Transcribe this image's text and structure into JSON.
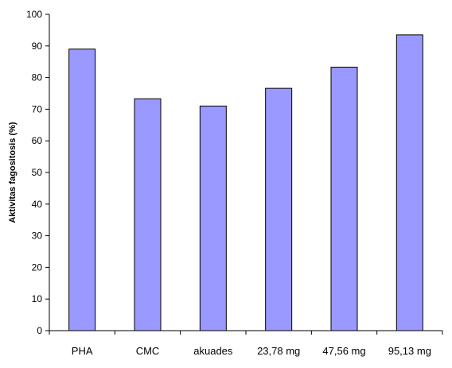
{
  "chart_data": {
    "type": "bar",
    "categories": [
      "PHA",
      "CMC",
      "akuades",
      "23,78 mg",
      "47,56 mg",
      "95,13 mg"
    ],
    "values": [
      89,
      73.3,
      71,
      76.6,
      83.3,
      93.5
    ],
    "title": "",
    "xlabel": "",
    "ylabel": "Aktivitas fagositosis (%)",
    "ylim": [
      0,
      100
    ],
    "yticks": [
      "0",
      "10",
      "20",
      "30",
      "40",
      "50",
      "60",
      "70",
      "80",
      "90",
      "100"
    ],
    "grid": false,
    "legend": "none",
    "bar_color": "#9999ff",
    "bar_border": "#000000"
  }
}
